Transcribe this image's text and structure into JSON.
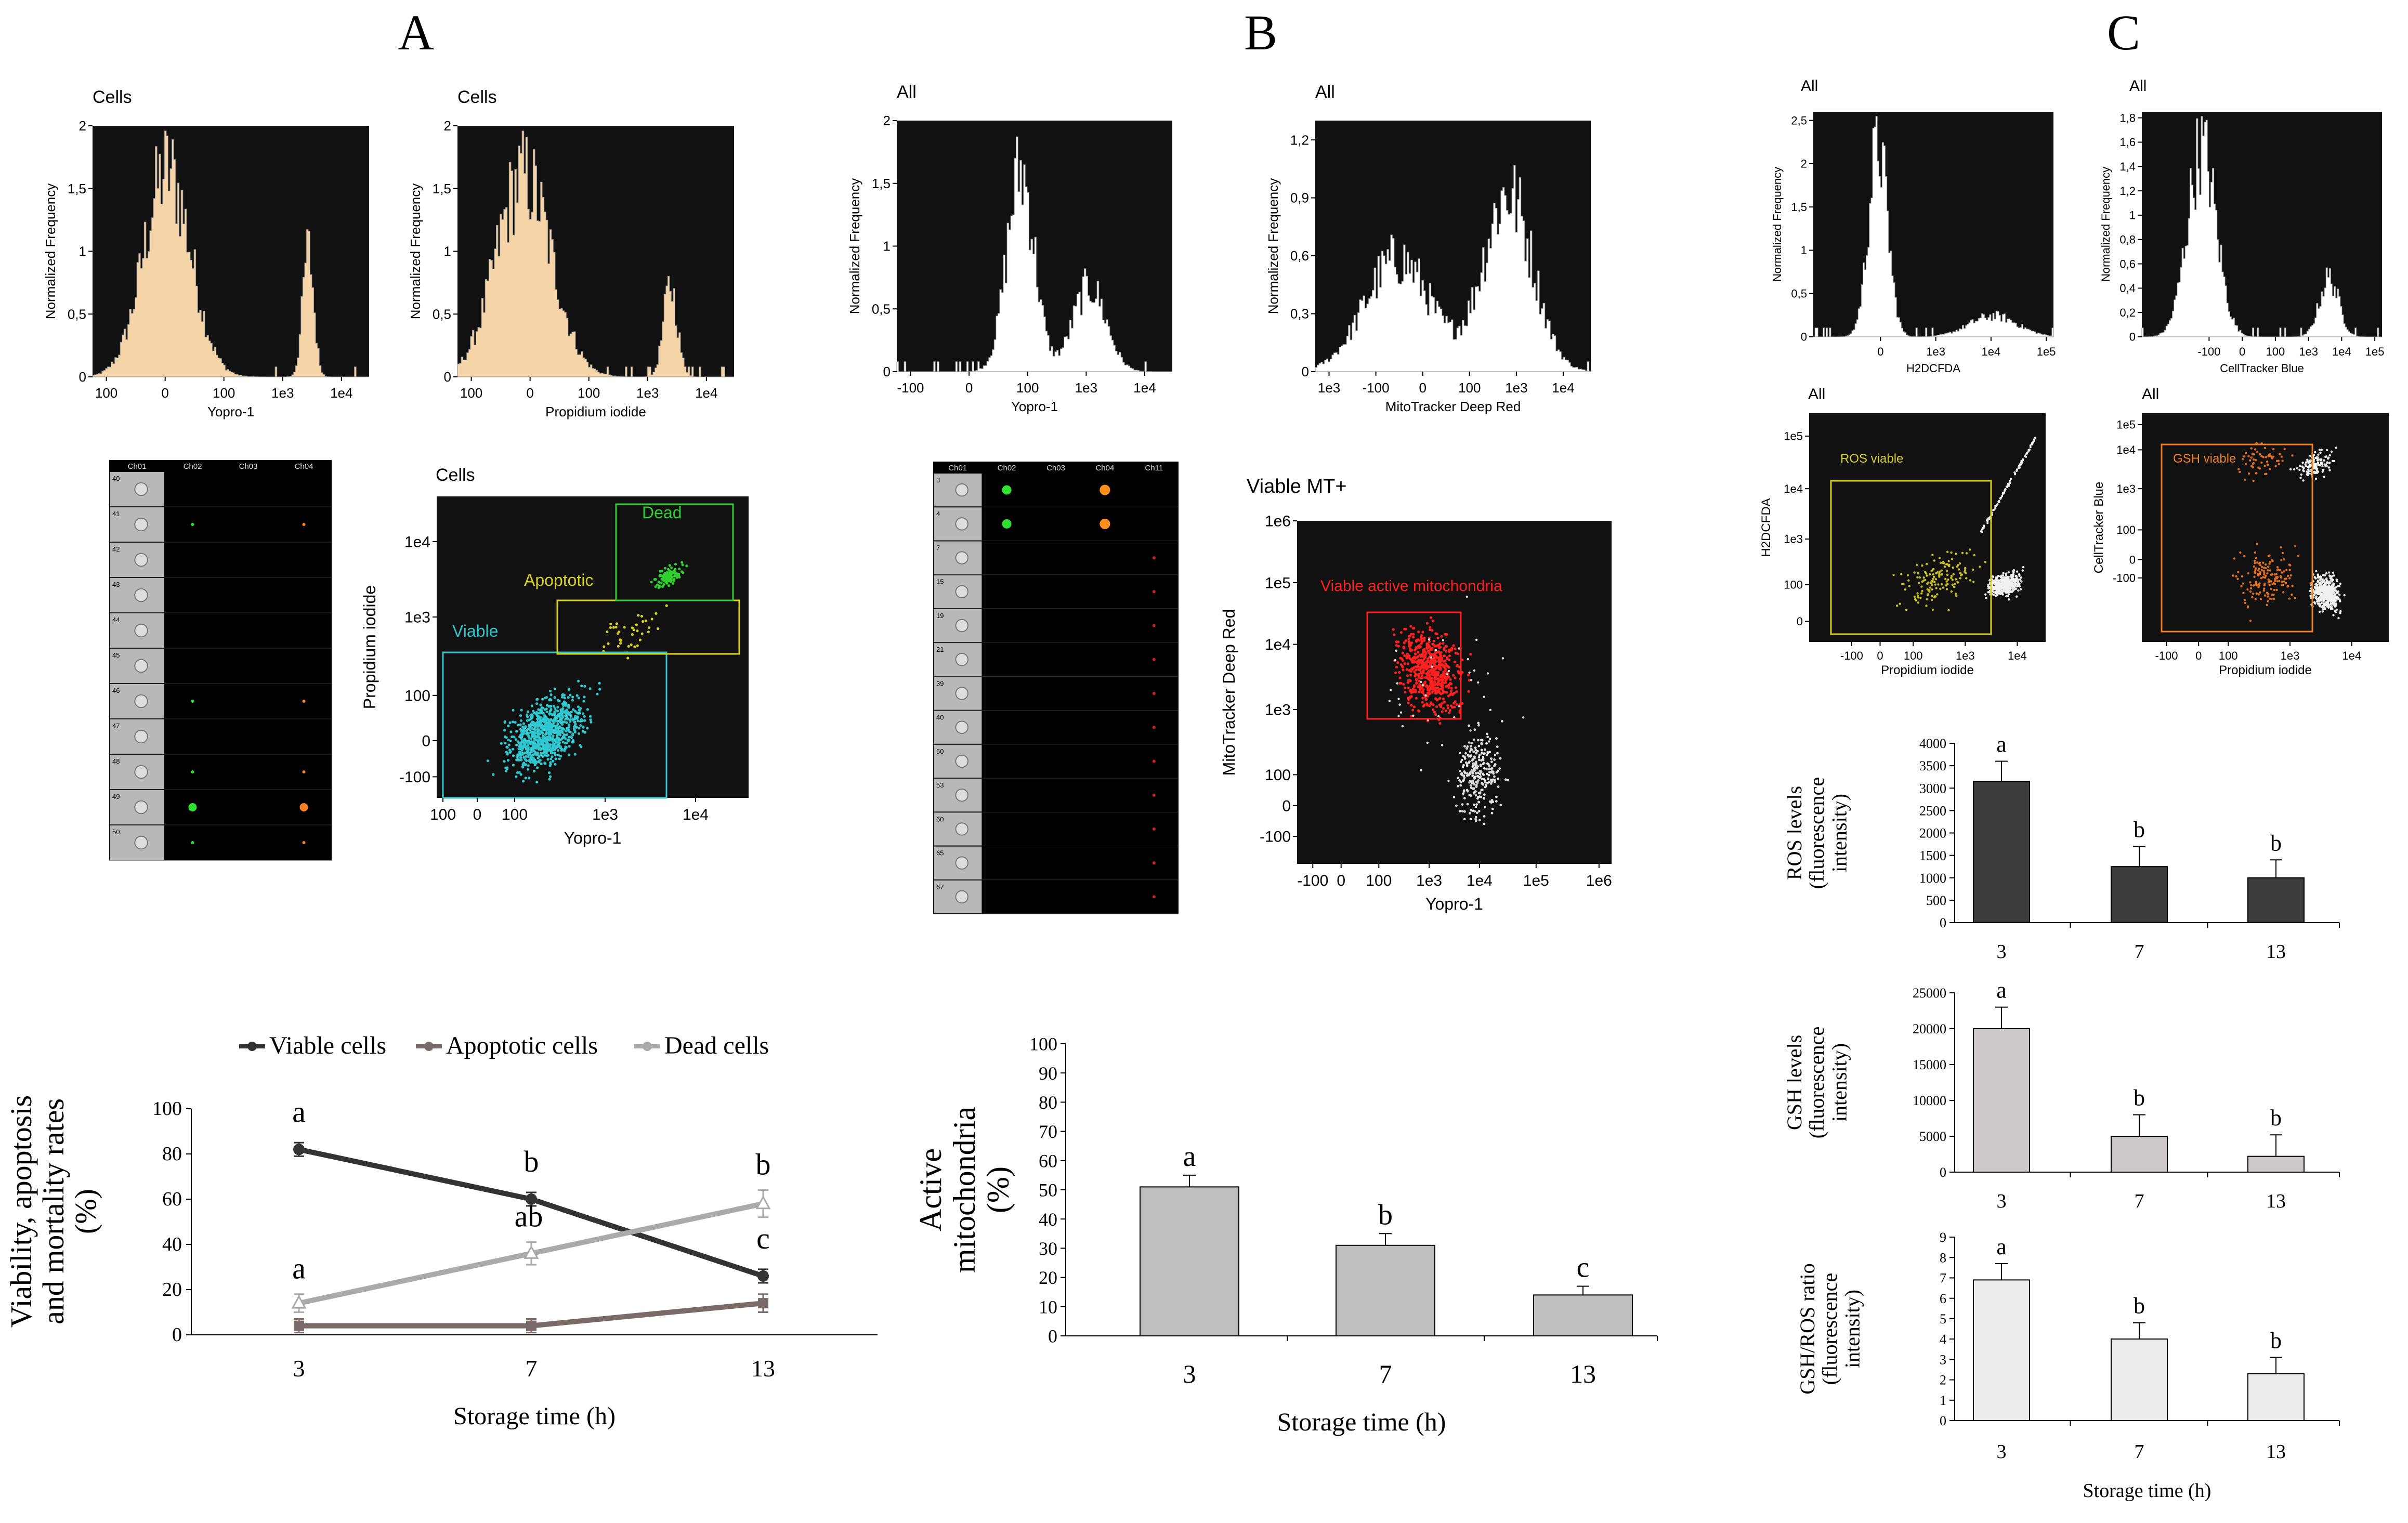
{
  "panels": {
    "A": "A",
    "B": "B",
    "C": "C"
  },
  "hist_common": {
    "ylabel": "Normalized Frequency"
  },
  "histograms": [
    {
      "id": "a1",
      "title": "Cells",
      "xlabel": "Yopro-1",
      "fill": "#f5d5a8",
      "yticks": [
        "0",
        "0,5",
        "1",
        "1,5",
        "2"
      ],
      "ymax": 2,
      "xticks": [
        "100",
        "0",
        "100",
        "1e3",
        "1e4"
      ],
      "peaks": [
        [
          0.27,
          0.085,
          1.7
        ],
        [
          0.78,
          0.02,
          1.05
        ]
      ]
    },
    {
      "id": "a2",
      "title": "Cells",
      "xlabel": "Propidium iodide",
      "fill": "#f5d5a8",
      "yticks": [
        "0",
        "0,5",
        "1",
        "1,5",
        "2"
      ],
      "ymax": 2,
      "xticks": [
        "100",
        "0",
        "100",
        "1e3",
        "1e4"
      ],
      "peaks": [
        [
          0.24,
          0.1,
          1.65
        ],
        [
          0.77,
          0.025,
          0.75
        ]
      ]
    },
    {
      "id": "b1",
      "title": "All",
      "xlabel": "Yopro-1",
      "fill": "#ffffff",
      "yticks": [
        "0",
        "0,5",
        "1",
        "1,5",
        "2"
      ],
      "ymax": 2,
      "xticks": [
        "-100",
        "0",
        "100",
        "1e3",
        "1e4"
      ],
      "peaks": [
        [
          0.45,
          0.05,
          1.65
        ],
        [
          0.7,
          0.06,
          0.7
        ]
      ]
    },
    {
      "id": "b2",
      "title": "All",
      "xlabel": "MitoTracker Deep Red",
      "fill": "#ffffff",
      "yticks": [
        "0",
        "0,3",
        "0,6",
        "0,9",
        "1,2"
      ],
      "ymax": 1.3,
      "xticks": [
        "1e3",
        "-100",
        "0",
        "100",
        "1e3",
        "1e4"
      ],
      "peaks": [
        [
          0.3,
          0.12,
          0.6
        ],
        [
          0.7,
          0.09,
          0.95
        ]
      ]
    },
    {
      "id": "c1",
      "title": "All",
      "xlabel": "H2DCFDA",
      "fill": "#ffffff",
      "yticks": [
        "0",
        "0,5",
        "1",
        "1,5",
        "2",
        "2,5"
      ],
      "ymax": 2.6,
      "xticks": [
        "0",
        "1e3",
        "1e4",
        "1e5"
      ],
      "peaks": [
        [
          0.27,
          0.04,
          2.3
        ],
        [
          0.75,
          0.1,
          0.25
        ]
      ]
    },
    {
      "id": "c2",
      "title": "All",
      "xlabel": "CellTracker Blue",
      "fill": "#ffffff",
      "yticks": [
        "0",
        "0,2",
        "0,4",
        "0,6",
        "0,8",
        "1",
        "1,2",
        "1,4",
        "1,6",
        "1,8"
      ],
      "ymax": 1.85,
      "xticks": [
        "-100",
        "0",
        "100",
        "1e3",
        "1e4",
        "1e5"
      ],
      "peaks": [
        [
          0.25,
          0.06,
          1.6
        ],
        [
          0.78,
          0.04,
          0.5
        ]
      ]
    }
  ],
  "scatter_plots": [
    {
      "id": "sA",
      "title": "Cells",
      "xlabel": "Yopro-1",
      "ylabel": "Propidium iodide",
      "xticks": [
        "100",
        "0",
        "100",
        "1e3",
        "1e4"
      ],
      "yticks": [
        "-100",
        "0",
        "100",
        "1e3",
        "1e4"
      ],
      "gates": [
        {
          "label": "Viable",
          "color": "#30c8d0"
        },
        {
          "label": "Apoptotic",
          "color": "#d8d020"
        },
        {
          "label": "Dead",
          "color": "#30d030"
        }
      ]
    },
    {
      "id": "sB",
      "title": "Viable MT+",
      "xlabel": "Yopro-1",
      "ylabel": "MitoTracker Deep Red",
      "xticks": [
        "-100",
        "0",
        "100",
        "1e3",
        "1e4",
        "1e5",
        "1e6"
      ],
      "yticks": [
        "-100",
        "0",
        "100",
        "1e3",
        "1e4",
        "1e5",
        "1e6"
      ],
      "gates": [
        {
          "label": "Viable active mitochondria",
          "color": "#ff2020"
        }
      ]
    },
    {
      "id": "sC1",
      "title": "All",
      "xlabel": "Propidium iodide",
      "ylabel": "H2DCFDA",
      "xticks": [
        "-100",
        "0",
        "100",
        "1e3",
        "1e4"
      ],
      "yticks": [
        "0",
        "100",
        "1e3",
        "1e4",
        "1e5"
      ],
      "gates": [
        {
          "label": "ROS viable",
          "color": "#d8d020"
        }
      ]
    },
    {
      "id": "sC2",
      "title": "All",
      "xlabel": "Propidium iodide",
      "ylabel": "CellTracker Blue",
      "xticks": [
        "-100",
        "0",
        "100",
        "1e3",
        "1e4"
      ],
      "yticks": [
        "-100",
        "0",
        "100",
        "1e3",
        "1e4",
        "1e5"
      ],
      "gates": [
        {
          "label": "GSH viable",
          "color": "#f08020"
        }
      ]
    }
  ],
  "image_strips": [
    {
      "id": "imA",
      "headers": [
        "Ch01",
        "Ch02",
        "Ch03",
        "Ch04"
      ],
      "rows": [
        "40",
        "41",
        "42",
        "43",
        "44",
        "45",
        "46",
        "47",
        "48",
        "49",
        "50"
      ]
    },
    {
      "id": "imB",
      "headers": [
        "Ch01",
        "Ch02",
        "Ch03",
        "Ch04",
        "Ch11"
      ],
      "rows": [
        "3",
        "4",
        "7",
        "15",
        "19",
        "21",
        "39",
        "40",
        "50",
        "53",
        "60",
        "65",
        "67"
      ]
    }
  ],
  "chart_data": [
    {
      "type": "line",
      "title": "",
      "x": [
        "3",
        "7",
        "13"
      ],
      "xlabel": "Storage time (h)",
      "ylabel": "Viability, apoptosis and mortality rates (%)",
      "ylim": [
        0,
        100
      ],
      "yticks": [
        "0",
        "20",
        "40",
        "60",
        "80",
        "100"
      ],
      "series": [
        {
          "name": "Viable cells",
          "color": "#333333",
          "marker": "circle",
          "values": [
            82,
            60,
            26
          ],
          "err": [
            3,
            3,
            3
          ],
          "letters": [
            "a",
            "b",
            "c"
          ]
        },
        {
          "name": "Apoptotic cells",
          "color": "#7a6a6a",
          "marker": "square",
          "values": [
            4,
            4,
            14
          ],
          "err": [
            3,
            3,
            4
          ],
          "letters": [
            "",
            "",
            ""
          ]
        },
        {
          "name": "Dead cells",
          "color": "#aaaaaa",
          "marker": "triangle",
          "values": [
            14,
            36,
            58
          ],
          "err": [
            4,
            5,
            6
          ],
          "letters": [
            "a",
            "ab",
            "b"
          ]
        }
      ]
    },
    {
      "type": "bar",
      "title": "",
      "categories": [
        "3",
        "7",
        "13"
      ],
      "values": [
        51,
        31,
        14
      ],
      "err": [
        4,
        4,
        3
      ],
      "letters": [
        "a",
        "b",
        "c"
      ],
      "color": "#c0c0c0",
      "xlabel": "Storage time (h)",
      "ylabel": "Active mitochondria (%)",
      "ylim": [
        0,
        100
      ],
      "yticks": [
        "0",
        "10",
        "20",
        "30",
        "40",
        "50",
        "60",
        "70",
        "80",
        "90",
        "100"
      ]
    },
    {
      "type": "bar",
      "title": "",
      "categories": [
        "3",
        "7",
        "13"
      ],
      "values": [
        3150,
        1250,
        1000
      ],
      "err": [
        450,
        450,
        400
      ],
      "letters": [
        "a",
        "b",
        "b"
      ],
      "color": "#3c3c3c",
      "xlabel": "",
      "ylabel": "ROS levels (fluorescence intensity)",
      "ylim": [
        0,
        4000
      ],
      "yticks": [
        "0",
        "500",
        "1000",
        "1500",
        "2000",
        "2500",
        "3000",
        "3500",
        "4000"
      ]
    },
    {
      "type": "bar",
      "title": "",
      "categories": [
        "3",
        "7",
        "13"
      ],
      "values": [
        20000,
        5000,
        2200
      ],
      "err": [
        3000,
        3000,
        3000
      ],
      "letters": [
        "a",
        "b",
        "b"
      ],
      "color": "#cfc8c8",
      "xlabel": "",
      "ylabel": "GSH levels (fluorescence intensity)",
      "ylim": [
        0,
        25000
      ],
      "yticks": [
        "0",
        "5000",
        "10000",
        "15000",
        "20000",
        "25000"
      ]
    },
    {
      "type": "bar",
      "title": "",
      "categories": [
        "3",
        "7",
        "13"
      ],
      "values": [
        6.9,
        4.0,
        2.3
      ],
      "err": [
        0.8,
        0.8,
        0.8
      ],
      "letters": [
        "a",
        "b",
        "b"
      ],
      "color": "#ececec",
      "xlabel": "Storage time (h)",
      "ylabel": "GSH/ROS ratio (fluorescence intensity)",
      "ylim": [
        0,
        9
      ],
      "yticks": [
        "0",
        "1",
        "2",
        "3",
        "4",
        "5",
        "6",
        "7",
        "8",
        "9"
      ]
    }
  ]
}
